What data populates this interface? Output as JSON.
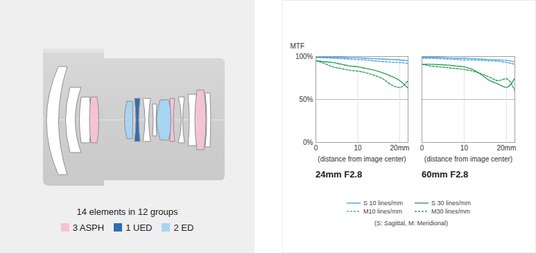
{
  "diagram": {
    "caption": "14 elements in 12 groups",
    "legend": [
      {
        "label": "3 ASPH",
        "color": "#f5c3d6"
      },
      {
        "label": "1 UED",
        "color": "#2b6fb8"
      },
      {
        "label": "2 ED",
        "color": "#a9d4f1"
      }
    ]
  },
  "legend_note": "(S: Sagittal, M: Meridional)",
  "chart_data": [
    {
      "type": "line",
      "title": "24mm F2.8",
      "ylabel": "MTF",
      "xlabel": "(distance from image center)",
      "x": [
        0,
        2,
        4,
        6,
        8,
        10,
        12,
        14,
        16,
        18,
        20,
        22
      ],
      "series": [
        {
          "name": "S 10 lines/mm",
          "color": "#4ba3e0",
          "line_style": "solid",
          "values": [
            99,
            99,
            99,
            99,
            98.5,
            98.5,
            98,
            97.5,
            97,
            96.5,
            96,
            95
          ]
        },
        {
          "name": "S 30 lines/mm",
          "color": "#2e9e5b",
          "line_style": "solid",
          "values": [
            95,
            94,
            93,
            91,
            89,
            88,
            86,
            84,
            81,
            77,
            72,
            63
          ]
        },
        {
          "name": "M10 lines/mm",
          "color": "#4ba3e0",
          "line_style": "dashed",
          "values": [
            99,
            98.5,
            98,
            97.5,
            97,
            96.5,
            96,
            95,
            94,
            93.5,
            93,
            92
          ]
        },
        {
          "name": "M30 lines/mm",
          "color": "#2e9e5b",
          "line_style": "dashed",
          "values": [
            95,
            92,
            88,
            86,
            84,
            83,
            81,
            78,
            74,
            67,
            64,
            72
          ]
        }
      ],
      "xlim": [
        0,
        22
      ],
      "xticks": [
        0,
        10,
        {
          "value": 20,
          "label": "20mm"
        }
      ],
      "ylim": [
        0,
        100
      ],
      "yticks": [
        {
          "value": 0,
          "label": "0%"
        },
        {
          "value": 50,
          "label": "50%"
        },
        {
          "value": 100,
          "label": "100%"
        }
      ],
      "grid": true
    },
    {
      "type": "line",
      "title": "60mm F2.8",
      "xlabel": "(distance from image center)",
      "x": [
        0,
        2,
        4,
        6,
        8,
        10,
        12,
        14,
        16,
        18,
        20,
        22
      ],
      "series": [
        {
          "name": "S 10 lines/mm",
          "color": "#4ba3e0",
          "line_style": "solid",
          "values": [
            99,
            99,
            99,
            98.5,
            98,
            98,
            97.5,
            97,
            96.5,
            96,
            95.5,
            94
          ]
        },
        {
          "name": "S 30 lines/mm",
          "color": "#2e9e5b",
          "line_style": "solid",
          "values": [
            91,
            91,
            90.5,
            90,
            89,
            88,
            85,
            79,
            72,
            68,
            64,
            75
          ]
        },
        {
          "name": "M10 lines/mm",
          "color": "#4ba3e0",
          "line_style": "dashed",
          "values": [
            98,
            98,
            97.5,
            97,
            96.5,
            96,
            96,
            95.5,
            95,
            94.5,
            93,
            91
          ]
        },
        {
          "name": "M30 lines/mm",
          "color": "#2e9e5b",
          "line_style": "dashed",
          "values": [
            91,
            89,
            88,
            87,
            86,
            85,
            83,
            80,
            76,
            72,
            74,
            60
          ]
        }
      ],
      "xlim": [
        0,
        22
      ],
      "xticks": [
        0,
        10,
        {
          "value": 20,
          "label": "20mm"
        }
      ],
      "ylim": [
        0,
        100
      ],
      "yticks": [
        {
          "value": 0,
          "label": "0%"
        },
        {
          "value": 50,
          "label": "50%"
        },
        {
          "value": 100,
          "label": "100%"
        }
      ],
      "grid": true,
      "tick_labels": "x"
    }
  ]
}
